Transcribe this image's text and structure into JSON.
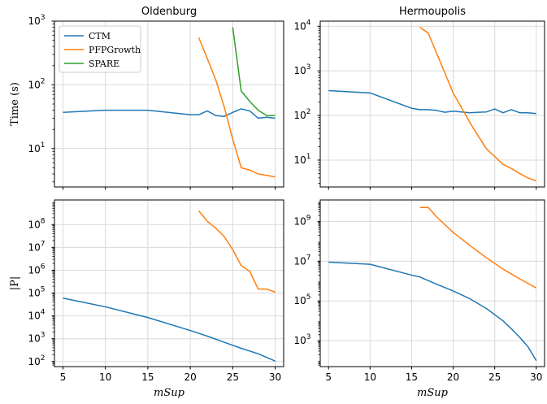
{
  "chart_data": [
    {
      "type": "line",
      "title": "Oldenburg",
      "xlabel": "",
      "ylabel": "Time (s)",
      "yscale": "log",
      "xlim": [
        4,
        31
      ],
      "ylim": [
        2.5,
        1000
      ],
      "xticks": [
        5,
        10,
        15,
        20,
        25,
        30
      ],
      "yticks": [
        {
          "value": 10,
          "base": "10",
          "exp": "1"
        },
        {
          "value": 100,
          "base": "10",
          "exp": "2"
        },
        {
          "value": 1000,
          "base": "10",
          "exp": "3"
        }
      ],
      "show_xtick_labels": false,
      "legend": {
        "placement": "top-left",
        "entries": [
          "CTM",
          "PFPGrowth",
          "SPARE"
        ]
      },
      "grid": true,
      "series": [
        {
          "name": "CTM",
          "color": "#1f77b4",
          "x": [
            5,
            10,
            15,
            20,
            21,
            22,
            23,
            24,
            25,
            26,
            27,
            28,
            29,
            30
          ],
          "y": [
            37,
            40,
            40,
            34,
            34,
            39,
            33,
            32,
            37,
            42,
            39,
            30,
            31,
            30
          ]
        },
        {
          "name": "PFPGrowth",
          "color": "#ff7f0e",
          "x": [
            21,
            22,
            23,
            24,
            25,
            26,
            27,
            28,
            29,
            30
          ],
          "y": [
            550,
            260,
            120,
            45,
            14,
            5,
            4.6,
            4,
            3.8,
            3.6
          ]
        },
        {
          "name": "SPARE",
          "color": "#2ca02c",
          "x": [
            25,
            26,
            27,
            28,
            29,
            30
          ],
          "y": [
            800,
            80,
            55,
            40,
            33,
            33
          ]
        }
      ]
    },
    {
      "type": "line",
      "title": "Hermoupolis",
      "xlabel": "",
      "ylabel": "",
      "yscale": "log",
      "xlim": [
        4,
        31
      ],
      "ylim": [
        2.5,
        13000
      ],
      "xticks": [
        5,
        10,
        15,
        20,
        25,
        30
      ],
      "yticks": [
        {
          "value": 10,
          "base": "10",
          "exp": "1"
        },
        {
          "value": 100,
          "base": "10",
          "exp": "2"
        },
        {
          "value": 1000,
          "base": "10",
          "exp": "3"
        },
        {
          "value": 10000,
          "base": "10",
          "exp": "4"
        }
      ],
      "show_xtick_labels": false,
      "grid": true,
      "series": [
        {
          "name": "CTM",
          "color": "#1f77b4",
          "x": [
            5,
            10,
            15,
            16,
            17,
            18,
            19,
            20,
            21,
            22,
            23,
            24,
            25,
            26,
            27,
            28,
            29,
            30
          ],
          "y": [
            360,
            320,
            145,
            135,
            135,
            130,
            118,
            125,
            120,
            115,
            118,
            120,
            140,
            115,
            135,
            115,
            115,
            110
          ]
        },
        {
          "name": "PFPGrowth",
          "color": "#ff7f0e",
          "x": [
            16,
            17,
            18,
            19,
            20,
            21,
            22,
            23,
            24,
            25,
            26,
            27,
            28,
            29,
            30
          ],
          "y": [
            9500,
            7000,
            2500,
            900,
            320,
            150,
            70,
            35,
            18,
            12,
            8,
            6.5,
            5,
            4,
            3.4
          ]
        }
      ]
    },
    {
      "type": "line",
      "title": "",
      "xlabel": "mSup",
      "ylabel": "|P|",
      "yscale": "log",
      "xlim": [
        4,
        31
      ],
      "ylim": [
        60,
        1200000000
      ],
      "xticks": [
        5,
        10,
        15,
        20,
        25,
        30
      ],
      "yticks": [
        {
          "value": 100,
          "base": "10",
          "exp": "2"
        },
        {
          "value": 1000,
          "base": "10",
          "exp": "3"
        },
        {
          "value": 10000,
          "base": "10",
          "exp": "4"
        },
        {
          "value": 100000,
          "base": "10",
          "exp": "5"
        },
        {
          "value": 1000000,
          "base": "10",
          "exp": "6"
        },
        {
          "value": 10000000,
          "base": "10",
          "exp": "7"
        },
        {
          "value": 100000000,
          "base": "10",
          "exp": "8"
        }
      ],
      "show_xtick_labels": true,
      "grid": true,
      "series": [
        {
          "name": "CTM",
          "color": "#1f77b4",
          "x": [
            5,
            10,
            15,
            20,
            22,
            24,
            26,
            28,
            30
          ],
          "y": [
            60000,
            25000,
            8500,
            2300,
            1300,
            700,
            380,
            220,
            105
          ]
        },
        {
          "name": "PFPGrowth",
          "color": "#ff7f0e",
          "x": [
            21,
            22,
            23,
            24,
            25,
            26,
            27,
            28,
            29,
            30
          ],
          "y": [
            400000000,
            140000000,
            70000000,
            30000000,
            8000000,
            1600000,
            900000,
            150000,
            150000,
            110000
          ]
        }
      ]
    },
    {
      "type": "line",
      "title": "",
      "xlabel": "mSup",
      "ylabel": "",
      "yscale": "log",
      "xlim": [
        4,
        31
      ],
      "ylim": [
        50,
        12000000000
      ],
      "xticks": [
        5,
        10,
        15,
        20,
        25,
        30
      ],
      "yticks": [
        {
          "value": 1000,
          "base": "10",
          "exp": "3"
        },
        {
          "value": 100000,
          "base": "10",
          "exp": "5"
        },
        {
          "value": 10000000,
          "base": "10",
          "exp": "7"
        },
        {
          "value": 1000000000,
          "base": "10",
          "exp": "9"
        }
      ],
      "show_xtick_labels": true,
      "grid": true,
      "series": [
        {
          "name": "CTM",
          "color": "#1f77b4",
          "x": [
            5,
            10,
            15,
            16,
            18,
            20,
            22,
            24,
            26,
            27,
            28,
            29,
            30
          ],
          "y": [
            9000000,
            7000000,
            2000000,
            1600000,
            700000,
            320000,
            130000,
            42000,
            10000,
            4000,
            1500,
            500,
            100
          ]
        },
        {
          "name": "PFPGrowth",
          "color": "#ff7f0e",
          "x": [
            16,
            17,
            18,
            20,
            22,
            24,
            26,
            28,
            30
          ],
          "y": [
            5000000000,
            5000000000,
            1700000000,
            280000000,
            62000000,
            15000000,
            4000000,
            1300000,
            450000
          ]
        }
      ]
    }
  ]
}
